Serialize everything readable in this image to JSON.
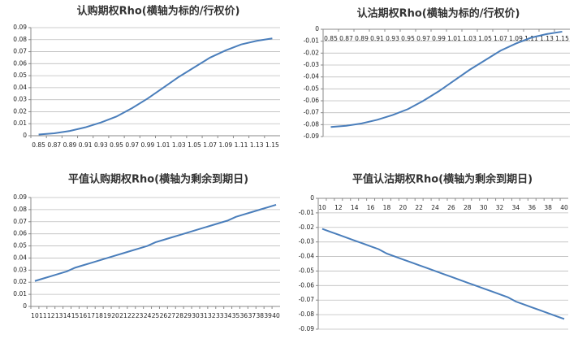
{
  "chart_data": [
    {
      "type": "line",
      "title": "认购期权Rho(横轴为标的/行权价)",
      "categories": [
        "0.85",
        "0.87",
        "0.89",
        "0.91",
        "0.93",
        "0.95",
        "0.97",
        "0.99",
        "1.01",
        "1.03",
        "1.05",
        "1.07",
        "1.09",
        "1.11",
        "1.13",
        "1.15"
      ],
      "values": [
        0.001,
        0.002,
        0.004,
        0.007,
        0.011,
        0.016,
        0.023,
        0.031,
        0.04,
        0.049,
        0.057,
        0.065,
        0.071,
        0.076,
        0.079,
        0.081
      ],
      "color": "#4a7ebb",
      "ylim": [
        0,
        0.09
      ],
      "yticks": [
        0,
        0.01,
        0.02,
        0.03,
        0.04,
        0.05,
        0.06,
        0.07,
        0.08,
        0.09
      ],
      "grid": true
    },
    {
      "type": "line",
      "title": "认沽期权Rho(横轴为标的/行权价)",
      "categories": [
        "0.85",
        "0.87",
        "0.89",
        "0.91",
        "0.93",
        "0.95",
        "0.97",
        "0.99",
        "1.01",
        "1.03",
        "1.05",
        "1.07",
        "1.09",
        "1.11",
        "1.13",
        "1.15"
      ],
      "values": [
        -0.082,
        -0.081,
        -0.079,
        -0.076,
        -0.072,
        -0.067,
        -0.06,
        -0.052,
        -0.043,
        -0.034,
        -0.026,
        -0.018,
        -0.012,
        -0.007,
        -0.004,
        -0.002
      ],
      "color": "#4a7ebb",
      "ylim": [
        -0.09,
        0
      ],
      "yticks": [
        0,
        -0.01,
        -0.02,
        -0.03,
        -0.04,
        -0.05,
        -0.06,
        -0.07,
        -0.08,
        -0.09
      ],
      "grid": true
    },
    {
      "type": "line",
      "title": "平值认购期权Rho(横轴为剩余到期日)",
      "categories": [
        "10",
        "11",
        "12",
        "13",
        "14",
        "15",
        "16",
        "17",
        "18",
        "19",
        "20",
        "21",
        "22",
        "23",
        "24",
        "25",
        "26",
        "27",
        "28",
        "29",
        "30",
        "31",
        "32",
        "33",
        "34",
        "35",
        "36",
        "37",
        "38",
        "39",
        "40"
      ],
      "values": [
        0.021,
        0.023,
        0.025,
        0.027,
        0.029,
        0.032,
        0.034,
        0.036,
        0.038,
        0.04,
        0.042,
        0.044,
        0.046,
        0.048,
        0.05,
        0.053,
        0.055,
        0.057,
        0.059,
        0.061,
        0.063,
        0.065,
        0.067,
        0.069,
        0.071,
        0.074,
        0.076,
        0.078,
        0.08,
        0.082,
        0.084
      ],
      "color": "#4a7ebb",
      "ylim": [
        0,
        0.09
      ],
      "yticks": [
        0,
        0.01,
        0.02,
        0.03,
        0.04,
        0.05,
        0.06,
        0.07,
        0.08,
        0.09
      ],
      "grid": true
    },
    {
      "type": "line",
      "title": "平值认沽期权Rho(横轴为剩余到期日)",
      "categories": [
        "10",
        null,
        "12",
        null,
        "14",
        null,
        "16",
        null,
        "18",
        null,
        "20",
        null,
        "22",
        null,
        "24",
        null,
        "26",
        null,
        "28",
        null,
        "30",
        null,
        "32",
        null,
        "34",
        null,
        "36",
        null,
        "38",
        null,
        "40"
      ],
      "values": [
        -0.021,
        -0.023,
        -0.025,
        -0.027,
        -0.029,
        -0.031,
        -0.033,
        -0.035,
        -0.038,
        -0.04,
        -0.042,
        -0.044,
        -0.046,
        -0.048,
        -0.05,
        -0.052,
        -0.054,
        -0.056,
        -0.058,
        -0.06,
        -0.062,
        -0.064,
        -0.066,
        -0.068,
        -0.071,
        -0.073,
        -0.075,
        -0.077,
        -0.079,
        -0.081,
        -0.083
      ],
      "color": "#4a7ebb",
      "ylim": [
        -0.09,
        0
      ],
      "yticks": [
        0,
        -0.01,
        -0.02,
        -0.03,
        -0.04,
        -0.05,
        -0.06,
        -0.07,
        -0.08,
        -0.09
      ],
      "grid": true
    }
  ]
}
